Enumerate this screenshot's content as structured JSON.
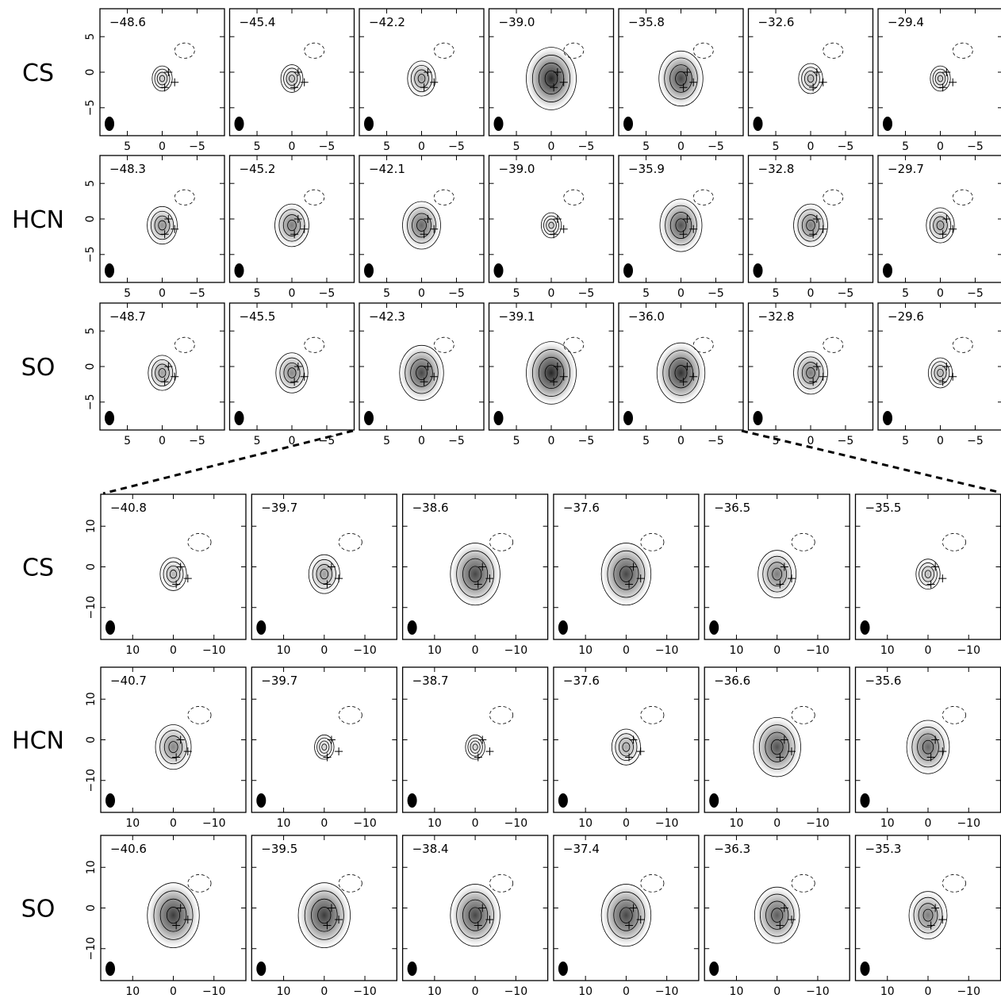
{
  "figure": {
    "top_grid": {
      "x_ticks": [
        "5",
        "0",
        "−5"
      ],
      "y_ticks": [
        "5",
        "0",
        "−5"
      ],
      "rows": [
        {
          "molecule": "CS",
          "velocities": [
            "−48.6",
            "−45.4",
            "−42.2",
            "−39.0",
            "−35.8",
            "−32.6",
            "−29.4"
          ],
          "peak": [
            0.25,
            0.3,
            0.45,
            1.0,
            0.85,
            0.35,
            0.25
          ]
        },
        {
          "molecule": "HCN",
          "velocities": [
            "−48.3",
            "−45.2",
            "−42.1",
            "−39.0",
            "−35.9",
            "−32.8",
            "−29.7"
          ],
          "peak": [
            0.5,
            0.6,
            0.7,
            0.25,
            0.8,
            0.6,
            0.45
          ]
        },
        {
          "molecule": "SO",
          "velocities": [
            "−48.7",
            "−45.5",
            "−42.3",
            "−39.1",
            "−36.0",
            "−32.8",
            "−29.6"
          ],
          "peak": [
            0.45,
            0.55,
            0.85,
            1.0,
            0.95,
            0.6,
            0.35
          ]
        }
      ]
    },
    "bottom_grid": {
      "x_ticks": [
        "10",
        "0",
        "−10"
      ],
      "y_ticks": [
        "10",
        "0",
        "−10"
      ],
      "rows": [
        {
          "molecule": "CS",
          "velocities": [
            "−40.8",
            "−39.7",
            "−38.6",
            "−37.6",
            "−36.5",
            "−35.5"
          ],
          "peak": [
            0.35,
            0.45,
            0.85,
            0.85,
            0.6,
            0.3
          ]
        },
        {
          "molecule": "HCN",
          "velocities": [
            "−40.7",
            "−39.7",
            "−38.7",
            "−37.6",
            "−36.6",
            "−35.6"
          ],
          "peak": [
            0.55,
            0.2,
            0.2,
            0.4,
            0.8,
            0.7
          ]
        },
        {
          "molecule": "SO",
          "velocities": [
            "−40.6",
            "−39.5",
            "−38.4",
            "−37.4",
            "−36.3",
            "−35.3"
          ],
          "peak": [
            0.9,
            0.9,
            0.85,
            0.85,
            0.75,
            0.6
          ]
        }
      ]
    }
  }
}
